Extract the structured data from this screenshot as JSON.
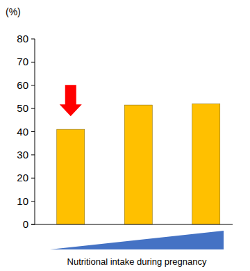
{
  "chart_data": {
    "type": "bar",
    "ylabel": "(%)",
    "xlabel": "Nutritional intake during pregnancy",
    "categories": [
      null,
      null,
      null
    ],
    "values": [
      41,
      51.5,
      52
    ],
    "color": "#ffc000",
    "ylim": [
      0,
      80
    ],
    "yticks": [
      0,
      10,
      20,
      30,
      40,
      50,
      60,
      70,
      80
    ],
    "grid": false
  }
}
